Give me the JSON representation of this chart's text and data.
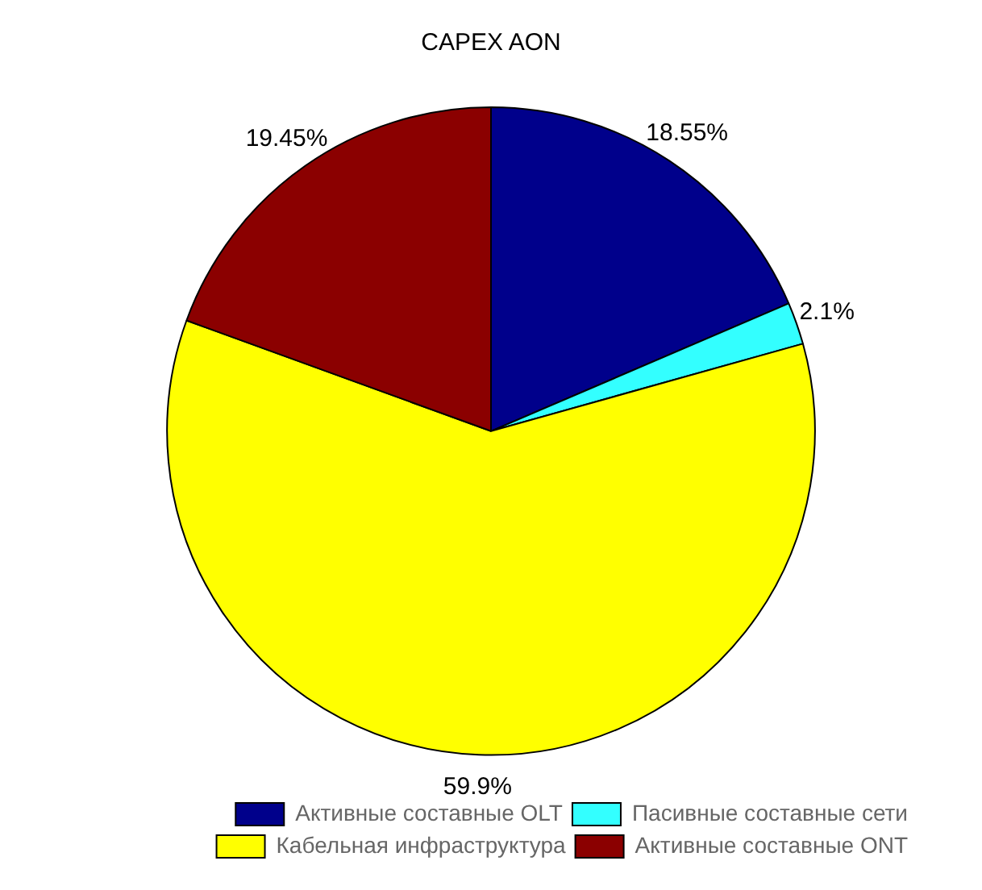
{
  "chart_data": {
    "type": "pie",
    "title": "CAPEX AON",
    "categories": [
      "Активные составные OLT",
      "Пасивные составные сети",
      "Кабельная инфраструктура",
      "Активные составные ONT"
    ],
    "values": [
      18.55,
      2.1,
      59.9,
      19.45
    ],
    "colors": [
      "#00008b",
      "#33ffff",
      "#ffff00",
      "#8b0000"
    ],
    "value_labels": [
      "18.55%",
      "2.1%",
      "59.9%",
      "19.45%"
    ],
    "legend": "bottom right"
  }
}
